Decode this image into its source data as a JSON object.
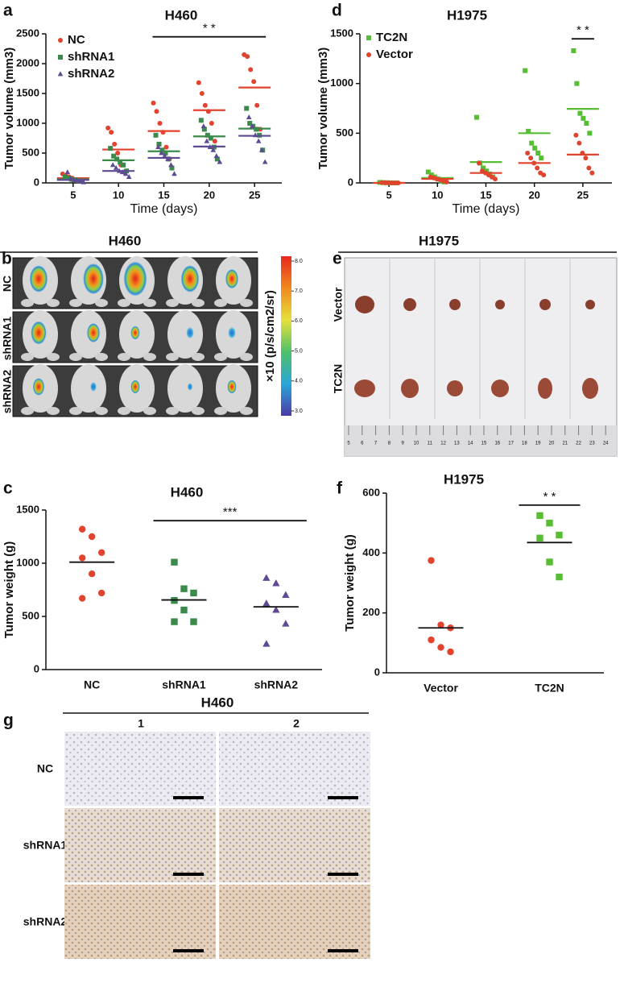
{
  "chart_data": [
    {
      "panel": "a",
      "type": "scatter",
      "title": "H460",
      "xlabel": "Time (days)",
      "ylabel": "Tumor volume (mm3)",
      "x": [
        5,
        10,
        15,
        20,
        25
      ],
      "xlim": [
        2,
        28
      ],
      "xticks": [
        5,
        10,
        15,
        20,
        25
      ],
      "ylim": [
        0,
        2500
      ],
      "yticks": [
        0,
        500,
        1000,
        1500,
        2000,
        2500
      ],
      "series": [
        {
          "name": "NC",
          "color": "#e2432f",
          "marker": "circle",
          "values": [
            [
              150,
              120,
              100,
              80,
              50,
              30
            ],
            [
              920,
              850,
              650,
              500,
              300,
              180
            ],
            [
              1340,
              1200,
              1000,
              850,
              600,
              400
            ],
            [
              1680,
              1500,
              1300,
              1200,
              1000,
              700
            ],
            [
              2150,
              2120,
              1900,
              1700,
              1300,
              900
            ]
          ],
          "means": [
            80,
            560,
            870,
            1220,
            1600
          ]
        },
        {
          "name": "shRNA1",
          "color": "#3b8a4c",
          "marker": "square",
          "values": [
            [
              100,
              80,
              60,
              50,
              40,
              30
            ],
            [
              580,
              450,
              400,
              350,
              300,
              200
            ],
            [
              800,
              650,
              550,
              500,
              400,
              250
            ],
            [
              1050,
              900,
              800,
              750,
              600,
              400
            ],
            [
              1250,
              1000,
              950,
              900,
              800,
              550
            ]
          ],
          "means": [
            60,
            380,
            530,
            780,
            910
          ]
        },
        {
          "name": "shRNA2",
          "color": "#5e4a94",
          "marker": "triangle",
          "values": [
            [
              180,
              80,
              50,
              40,
              20,
              10
            ],
            [
              300,
              250,
              200,
              180,
              150,
              100
            ],
            [
              600,
              500,
              450,
              400,
              300,
              150
            ],
            [
              950,
              700,
              600,
              550,
              450,
              350
            ],
            [
              1100,
              950,
              800,
              700,
              550,
              350
            ]
          ],
          "means": [
            50,
            200,
            420,
            610,
            790
          ]
        }
      ],
      "significance": {
        "label": "* *",
        "x": [
          15,
          25
        ],
        "y": 2450
      }
    },
    {
      "panel": "d",
      "type": "scatter",
      "title": "H1975",
      "xlabel": "Time (days)",
      "ylabel": "Tumor volume (mm3)",
      "x": [
        5,
        10,
        15,
        20,
        25
      ],
      "xlim": [
        2,
        28
      ],
      "xticks": [
        5,
        10,
        15,
        20,
        25
      ],
      "ylim": [
        0,
        1500
      ],
      "yticks": [
        0,
        500,
        1000,
        1500
      ],
      "series": [
        {
          "name": "TC2N",
          "color": "#57bd35",
          "marker": "square",
          "values": [
            [
              5,
              3,
              2,
              1,
              0,
              0
            ],
            [
              110,
              80,
              60,
              40,
              20,
              10
            ],
            [
              660,
              200,
              150,
              120,
              90,
              60
            ],
            [
              1130,
              520,
              400,
              350,
              300,
              250
            ],
            [
              1330,
              1000,
              700,
              650,
              600,
              500
            ]
          ],
          "means": [
            0,
            50,
            210,
            500,
            745
          ]
        },
        {
          "name": "Vector",
          "color": "#e2432f",
          "marker": "circle",
          "values": [
            [
              3,
              2,
              1,
              0,
              0,
              0
            ],
            [
              60,
              50,
              40,
              30,
              20,
              10
            ],
            [
              200,
              120,
              100,
              80,
              60,
              40
            ],
            [
              300,
              250,
              200,
              150,
              100,
              80
            ],
            [
              480,
              400,
              300,
              250,
              150,
              100
            ]
          ],
          "means": [
            0,
            40,
            100,
            200,
            285
          ]
        }
      ],
      "significance": {
        "label": "* *",
        "x": [
          25,
          25
        ],
        "y": 1450
      }
    },
    {
      "panel": "c",
      "type": "strip",
      "title": "H460",
      "ylabel": "Tumor weight (g)",
      "categories": [
        "NC",
        "shRNA1",
        "shRNA2"
      ],
      "ylim": [
        0,
        1500
      ],
      "yticks": [
        0,
        500,
        1000,
        1500
      ],
      "colors": [
        "#e2432f",
        "#3b8a4c",
        "#5e4a94"
      ],
      "markers": [
        "circle",
        "square",
        "triangle"
      ],
      "points": [
        [
          1320,
          1250,
          1100,
          1050,
          900,
          720,
          670
        ],
        [
          1010,
          760,
          720,
          650,
          560,
          450,
          450
        ],
        [
          860,
          810,
          700,
          620,
          560,
          430,
          240
        ]
      ],
      "means": [
        1010,
        655,
        590
      ],
      "significance": {
        "label": "***",
        "x": [
          1,
          2
        ],
        "y": 1400
      }
    },
    {
      "panel": "f",
      "type": "strip",
      "title": "H1975",
      "ylabel": "Tumor weight (g)",
      "categories": [
        "Vector",
        "TC2N"
      ],
      "ylim": [
        0,
        600
      ],
      "yticks": [
        0,
        200,
        400,
        600
      ],
      "colors": [
        "#e2432f",
        "#57bd35"
      ],
      "markers": [
        "circle",
        "square"
      ],
      "points": [
        [
          375,
          160,
          150,
          110,
          85,
          70
        ],
        [
          525,
          500,
          460,
          450,
          370,
          320
        ]
      ],
      "means": [
        150,
        435
      ],
      "significance": {
        "label": "* *",
        "x": [
          1,
          1
        ],
        "y": 560
      }
    }
  ],
  "image_panels": {
    "b": {
      "panel": "b",
      "title": "H460",
      "rows": [
        "NC",
        "shRNA1",
        "shRNA2"
      ],
      "colorbar_label": "×10 (p/s/cm2/sr)",
      "colorbar_ticks": [
        {
          "value": 8,
          "label": "8.0"
        },
        {
          "value": 7,
          "label": "7.0"
        },
        {
          "value": 6,
          "label": "6.0"
        },
        {
          "value": 5,
          "label": "5.0"
        },
        {
          "value": 4,
          "label": "4.0"
        },
        {
          "value": 3,
          "label": "3.0"
        }
      ]
    },
    "e": {
      "panel": "e",
      "title": "H1975",
      "rows": [
        "Vector",
        "TC2N"
      ],
      "ruler": [
        5,
        6,
        7,
        8,
        9,
        10,
        11,
        12,
        13,
        14,
        15,
        16,
        17,
        18,
        19,
        20,
        21,
        22,
        23,
        24
      ]
    },
    "g": {
      "panel": "g",
      "title": "H460",
      "columns": [
        "1",
        "2"
      ],
      "rows": [
        "NC",
        "shRNA1",
        "shRNA2"
      ]
    }
  }
}
